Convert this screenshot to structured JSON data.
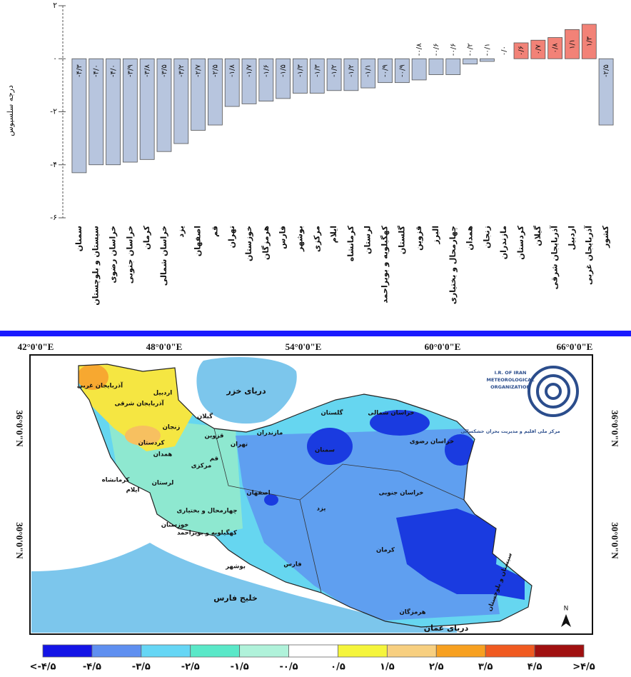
{
  "chart_data": {
    "type": "bar",
    "y_label": "درجه سلسیوس",
    "categories": [
      "سمنان",
      "سیستان و بلوچستان",
      "خراسان رضوی",
      "خراسان جنوبی",
      "کرمان",
      "خراسان شمالی",
      "یزد",
      "اصفهان",
      "قم",
      "تهران",
      "خوزستان",
      "هرمزگان",
      "فارس",
      "بوشهر",
      "مرکزی",
      "ایلام",
      "کرمانشاه",
      "لرستان",
      "کهگیلویه و بویراحمد",
      "گلستان",
      "قزوین",
      "البرز",
      "چهارمحال و بختیاری",
      "همدان",
      "زنجان",
      "مازندران",
      "کردستان",
      "گیلان",
      "آذربایجان شرقی",
      "اردبیل",
      "آذربایجان غربی",
      "کشور"
    ],
    "values": [
      -4.3,
      -4.0,
      -4.0,
      -3.9,
      -3.8,
      -3.5,
      -3.2,
      -2.7,
      -2.5,
      -1.8,
      -1.7,
      -1.6,
      -1.5,
      -1.3,
      -1.3,
      -1.2,
      -1.2,
      -1.1,
      -0.9,
      -0.9,
      -0.8,
      -0.6,
      -0.6,
      -0.2,
      -0.1,
      0.0,
      0.6,
      0.7,
      0.8,
      1.1,
      1.3,
      -2.5
    ],
    "value_labels": [
      "-۴/۳",
      "-۴/۰",
      "-۴/۰",
      "-۳/۹",
      "-۳/۸",
      "-۳/۵",
      "-۳/۲",
      "-۲/۷",
      "-۲/۵",
      "-۱/۸",
      "-۱/۷",
      "-۱/۶",
      "-۱/۵",
      "-۱/۳",
      "-۱/۳",
      "-۱/۲",
      "-۱/۲",
      "-۱/۱",
      "-۰/۹",
      "-۰/۹",
      "-۰/۸",
      "-۰/۶",
      "-۰/۶",
      "-۰/۲",
      "-۰/۱",
      "۰/۰",
      "۰/۶",
      "۰/۷",
      "۰/۸",
      "۱/۱",
      "۱/۳",
      "-۲/۵"
    ],
    "negative_color": "#b7c5de",
    "positive_color": "#f28277",
    "ylim": [
      -6,
      2
    ],
    "yticks": [
      {
        "value": 2,
        "label": "۲"
      },
      {
        "value": 0,
        "label": "۰"
      },
      {
        "value": -2,
        "label": "-۲"
      },
      {
        "value": -4,
        "label": "-۴"
      },
      {
        "value": -6,
        "label": "-۶"
      }
    ]
  },
  "map": {
    "lon_labels": [
      "42°0'0\"E",
      "48°0'0\"E",
      "54°0'0\"E",
      "60°0'0\"E",
      "66°0'0\"E"
    ],
    "lat_labels": [
      "36°0'0\"N",
      "30°0'0\"N"
    ],
    "places": [
      "دریای خزر",
      "خلیج فارس",
      "دریای عمان",
      "سمنان",
      "خراسان رضوی",
      "خراسان شمالی",
      "گلستان",
      "خراسان جنوبی",
      "یزد",
      "کرمان",
      "اصفهان",
      "تهران",
      "مازندران",
      "آذربایجان غربی",
      "اردبیل",
      "آذربایجان شرقی",
      "زنجان",
      "گیلان",
      "قزوین",
      "قم",
      "مرکزی",
      "کردستان",
      "همدان",
      "کرمانشاه",
      "لرستان",
      "ایلام",
      "خوزستان",
      "چهارمحال و بختیاری",
      "کهگیلویه و بویراحمد",
      "بوشهر",
      "فارس",
      "هرمزگان",
      "سیستان و بلوچستان"
    ],
    "logo_lines": [
      "I.R. OF IRAN",
      "METEOROLOGICAL",
      "ORGANIZATION",
      "مرکز ملی اقلیم و مدیریت بحران خشکسالی"
    ],
    "north": "N",
    "legend": {
      "colors": [
        "#1414e6",
        "#5f8ff0",
        "#66d6f5",
        "#5ae8c8",
        "#b0f2da",
        "#ffffff",
        "#f5f53c",
        "#f7cf80",
        "#f7a020",
        "#f05a20",
        "#a01010"
      ],
      "labels": [
        "<-۴/۵",
        "-۴/۵",
        "-۳/۵",
        "-۲/۵",
        "-۱/۵",
        "-۰/۵",
        "۰/۵",
        "۱/۵",
        "۲/۵",
        "۳/۵",
        "۴/۵",
        ">۴/۵"
      ]
    }
  }
}
